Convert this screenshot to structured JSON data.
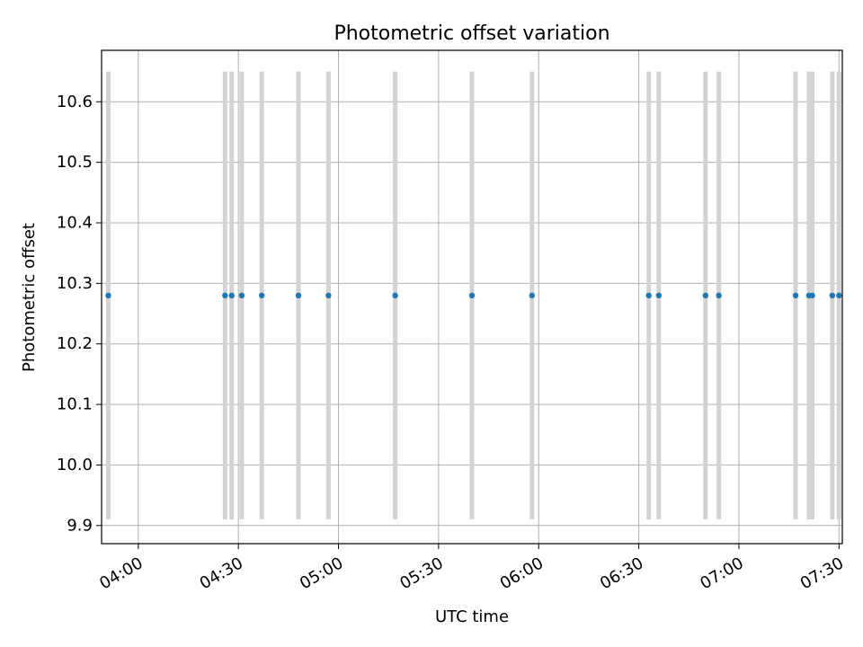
{
  "chart_data": {
    "type": "scatter",
    "title": "Photometric offset variation",
    "xlabel": "UTC time",
    "ylabel": "Photometric offset",
    "x_ticks": [
      "04:00",
      "04:30",
      "05:00",
      "05:30",
      "06:00",
      "06:30",
      "07:00",
      "07:30"
    ],
    "y_ticks": [
      "9.9",
      "10.0",
      "10.1",
      "10.2",
      "10.3",
      "10.4",
      "10.5",
      "10.6"
    ],
    "xlim": [
      "03:49",
      "07:31"
    ],
    "ylim": [
      9.87,
      10.685
    ],
    "grid": true,
    "marker_color": "#1f77b4",
    "error_bar_color": "#d3d3d3",
    "error_bar_range": [
      9.91,
      10.65
    ],
    "points": [
      {
        "x": "03:51",
        "y": 10.28
      },
      {
        "x": "04:26",
        "y": 10.28
      },
      {
        "x": "04:28",
        "y": 10.28
      },
      {
        "x": "04:31",
        "y": 10.28
      },
      {
        "x": "04:37",
        "y": 10.28
      },
      {
        "x": "04:48",
        "y": 10.28
      },
      {
        "x": "04:57",
        "y": 10.28
      },
      {
        "x": "05:17",
        "y": 10.28
      },
      {
        "x": "05:40",
        "y": 10.28
      },
      {
        "x": "05:58",
        "y": 10.28
      },
      {
        "x": "06:33",
        "y": 10.28
      },
      {
        "x": "06:36",
        "y": 10.28
      },
      {
        "x": "06:50",
        "y": 10.28
      },
      {
        "x": "06:54",
        "y": 10.28
      },
      {
        "x": "07:17",
        "y": 10.28
      },
      {
        "x": "07:21",
        "y": 10.28
      },
      {
        "x": "07:22",
        "y": 10.28
      },
      {
        "x": "07:28",
        "y": 10.28
      },
      {
        "x": "07:30",
        "y": 10.28
      }
    ]
  }
}
